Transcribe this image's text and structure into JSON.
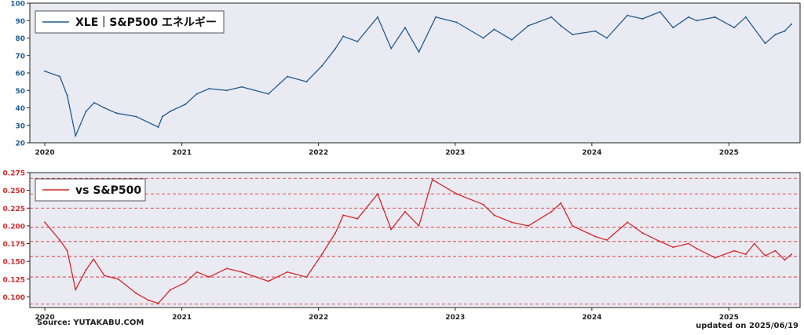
{
  "colors": {
    "panel_bg": "#eaeaf2",
    "top_line": "#1f5d91",
    "top_ticks": "#1f5d91",
    "bottom_line": "#d62728",
    "bottom_ticks": "#d62728",
    "ref_line": "#d62728",
    "axis": "#222222"
  },
  "footer": {
    "source": "Source: YUTAKABU.COM",
    "updated": "updated on 2025/06/19"
  },
  "chart_data": [
    {
      "type": "line",
      "legend": "XLE｜S&P500 エネルギー",
      "legend_position": "top-left",
      "grid": false,
      "ylim": [
        20,
        100
      ],
      "yticks": [
        20,
        30,
        40,
        50,
        60,
        70,
        80,
        90,
        100
      ],
      "xlim": [
        "2019-11-22",
        "2025-07-10"
      ],
      "xticks": [
        "2020",
        "2021",
        "2022",
        "2023",
        "2024",
        "2025"
      ],
      "x": [
        "2020-01-01",
        "2020-02-10",
        "2020-03-01",
        "2020-03-23",
        "2020-04-20",
        "2020-05-12",
        "2020-06-08",
        "2020-07-10",
        "2020-09-01",
        "2020-10-30",
        "2020-11-10",
        "2020-12-01",
        "2021-01-10",
        "2021-02-10",
        "2021-03-15",
        "2021-05-01",
        "2021-06-10",
        "2021-08-20",
        "2021-10-10",
        "2021-11-30",
        "2022-01-10",
        "2022-02-15",
        "2022-03-08",
        "2022-04-15",
        "2022-06-08",
        "2022-07-14",
        "2022-08-20",
        "2022-09-26",
        "2022-11-10",
        "2023-01-05",
        "2023-03-17",
        "2023-04-15",
        "2023-06-01",
        "2023-07-15",
        "2023-09-15",
        "2023-10-10",
        "2023-11-10",
        "2024-01-10",
        "2024-02-10",
        "2024-04-05",
        "2024-05-15",
        "2024-07-01",
        "2024-08-05",
        "2024-09-15",
        "2024-10-07",
        "2024-11-25",
        "2025-01-15",
        "2025-02-15",
        "2025-04-08",
        "2025-05-05",
        "2025-05-30",
        "2025-06-17"
      ],
      "series": [
        {
          "values": [
            61,
            58,
            47,
            24,
            38,
            43,
            40,
            37,
            35,
            29,
            35,
            38,
            42,
            48,
            51,
            50,
            52,
            48,
            58,
            55,
            64,
            74,
            81,
            78,
            92,
            74,
            86,
            72,
            92,
            89,
            80,
            85,
            79,
            87,
            92,
            87,
            82,
            84,
            80,
            93,
            91,
            95,
            86,
            92,
            90,
            92,
            86,
            92,
            77,
            82,
            84,
            88
          ]
        }
      ]
    },
    {
      "type": "line",
      "legend": "vs S&P500",
      "legend_position": "top-left",
      "grid": false,
      "ylim": [
        0.085,
        0.275
      ],
      "yticks": [
        0.1,
        0.125,
        0.15,
        0.175,
        0.2,
        0.225,
        0.25,
        0.275
      ],
      "ytick_labels": [
        "0.100",
        "0.125",
        "0.150",
        "0.175",
        "0.200",
        "0.225",
        "0.250",
        "0.275"
      ],
      "reference_lines": [
        0.09,
        0.128,
        0.157,
        0.178,
        0.198,
        0.225,
        0.245,
        0.267
      ],
      "xlim": [
        "2019-11-22",
        "2025-07-10"
      ],
      "xticks": [
        "2020",
        "2021",
        "2022",
        "2023",
        "2024",
        "2025"
      ],
      "x": [
        "2020-01-01",
        "2020-02-10",
        "2020-03-01",
        "2020-03-23",
        "2020-04-20",
        "2020-05-10",
        "2020-06-08",
        "2020-07-15",
        "2020-09-01",
        "2020-10-05",
        "2020-10-30",
        "2020-12-01",
        "2021-01-10",
        "2021-02-10",
        "2021-03-15",
        "2021-05-01",
        "2021-06-10",
        "2021-08-20",
        "2021-10-10",
        "2021-11-30",
        "2022-01-10",
        "2022-02-15",
        "2022-03-08",
        "2022-04-15",
        "2022-06-08",
        "2022-07-14",
        "2022-08-20",
        "2022-09-26",
        "2022-11-01",
        "2023-01-05",
        "2023-03-17",
        "2023-04-15",
        "2023-06-01",
        "2023-07-15",
        "2023-09-15",
        "2023-10-10",
        "2023-11-10",
        "2024-01-10",
        "2024-02-10",
        "2024-04-05",
        "2024-05-15",
        "2024-07-01",
        "2024-08-05",
        "2024-09-15",
        "2024-10-07",
        "2024-11-25",
        "2025-01-15",
        "2025-02-15",
        "2025-03-10",
        "2025-04-08",
        "2025-05-05",
        "2025-05-30",
        "2025-06-17"
      ],
      "series": [
        {
          "values": [
            0.205,
            0.18,
            0.165,
            0.11,
            0.138,
            0.153,
            0.13,
            0.125,
            0.105,
            0.095,
            0.091,
            0.11,
            0.12,
            0.135,
            0.128,
            0.14,
            0.135,
            0.122,
            0.135,
            0.128,
            0.16,
            0.19,
            0.215,
            0.21,
            0.245,
            0.195,
            0.22,
            0.2,
            0.265,
            0.245,
            0.23,
            0.215,
            0.205,
            0.2,
            0.22,
            0.232,
            0.2,
            0.185,
            0.18,
            0.205,
            0.19,
            0.178,
            0.17,
            0.175,
            0.168,
            0.155,
            0.165,
            0.16,
            0.175,
            0.158,
            0.165,
            0.152,
            0.16
          ]
        }
      ]
    }
  ]
}
